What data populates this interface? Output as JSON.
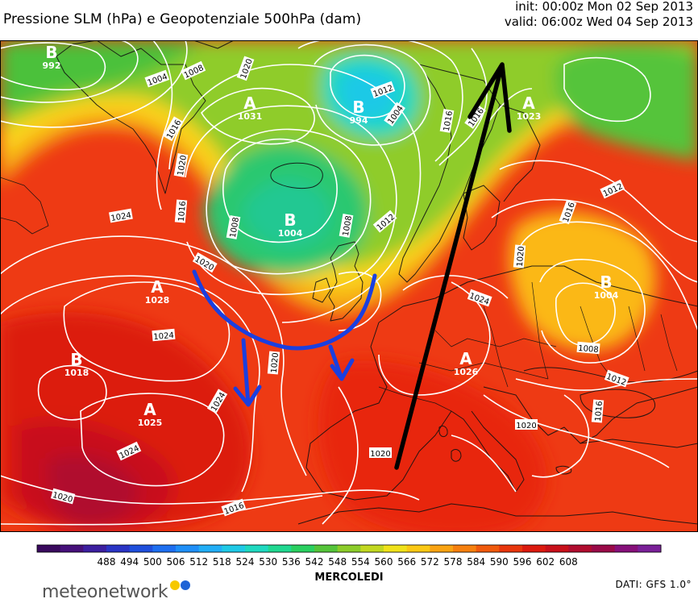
{
  "header": {
    "title": "Pressione SLM (hPa) e Geopotenziale 500hPa (dam)",
    "init": "init: 00:00z Mon 02 Sep 2013",
    "valid": "valid: 06:00z Wed 04 Sep 2013"
  },
  "colorbar": {
    "ticks": [
      "488",
      "494",
      "500",
      "506",
      "512",
      "518",
      "524",
      "530",
      "536",
      "542",
      "548",
      "554",
      "560",
      "566",
      "572",
      "578",
      "584",
      "590",
      "596",
      "602",
      "608"
    ],
    "colors": [
      "#3a0a5e",
      "#46107a",
      "#3c1fa0",
      "#2a34c4",
      "#1f4fdc",
      "#1e6ff0",
      "#1f8ff8",
      "#22aef6",
      "#1fc9e6",
      "#1fd9c0",
      "#20d890",
      "#2ad060",
      "#55c43a",
      "#8ccc2a",
      "#c2d820",
      "#f0e21a",
      "#fcc814",
      "#faa312",
      "#f6800e",
      "#f05a0c",
      "#e8360c",
      "#dc1a0e",
      "#c8101a",
      "#b00c2e",
      "#9a0a48",
      "#86107a",
      "#7a2098"
    ],
    "label": "MERCOLEDI"
  },
  "footer": {
    "dati": "DATI: GFS 1.0°",
    "logo_text": "meteonetwork",
    "logo_dot_colors": [
      "#f6c800",
      "#1f63d6"
    ]
  },
  "map": {
    "centers": [
      {
        "letter": "B",
        "value": "992"
      },
      {
        "letter": "A",
        "value": "1031"
      },
      {
        "letter": "B",
        "value": "994"
      },
      {
        "letter": "A",
        "value": "1023"
      },
      {
        "letter": "B",
        "value": "1004"
      },
      {
        "letter": "A",
        "value": "1028"
      },
      {
        "letter": "B",
        "value": "1004"
      },
      {
        "letter": "B",
        "value": "1018"
      },
      {
        "letter": "A",
        "value": "1025"
      },
      {
        "letter": "A",
        "value": "1026"
      }
    ],
    "isobar_labels": [
      "1004",
      "1008",
      "1020",
      "1012",
      "1016",
      "1016",
      "1004",
      "1016",
      "1020",
      "1008",
      "1008",
      "1012",
      "1024",
      "1016",
      "1020",
      "1012",
      "1016",
      "1020",
      "1024",
      "1024",
      "1020",
      "1024",
      "1008",
      "1012",
      "1016",
      "1020",
      "1020",
      "1024",
      "1020",
      "1016"
    ],
    "arrow_colors": {
      "trough": "#1a3fe0",
      "flow": "#000000"
    }
  }
}
